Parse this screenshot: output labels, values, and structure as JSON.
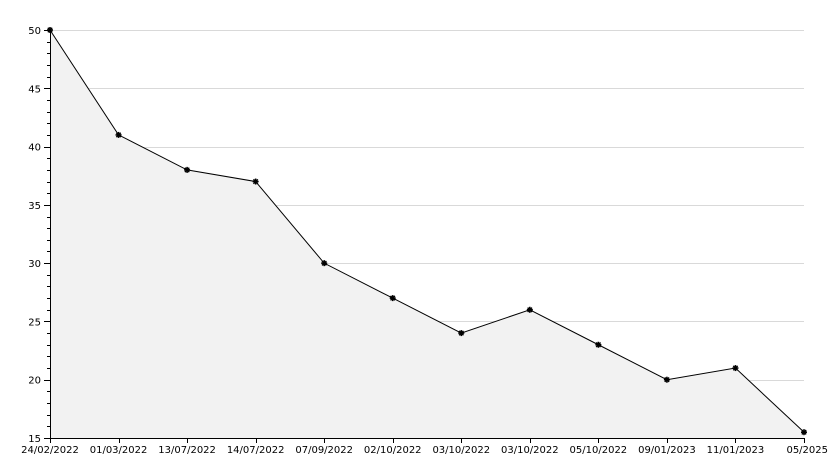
{
  "chart_data": {
    "type": "area",
    "title": "",
    "xlabel": "",
    "ylabel": "",
    "categories": [
      "24/02/2022",
      "01/03/2022",
      "13/07/2022",
      "14/07/2022",
      "07/09/2022",
      "02/10/2022",
      "03/10/2022",
      "03/10/2022",
      "05/10/2022",
      "09/01/2023",
      "11/01/2023",
      "05/2025"
    ],
    "values": [
      50,
      41,
      38,
      37,
      30,
      27,
      24,
      26,
      23,
      20,
      21,
      15.5
    ],
    "ylim": [
      15,
      50
    ],
    "yticks": [
      15,
      20,
      25,
      30,
      35,
      40,
      45,
      50
    ],
    "grid": "horizontal",
    "colors": {
      "line": "#000000",
      "fill": "#f2f2f2",
      "grid": "#d9d9d9",
      "marker": "#000000",
      "axis": "#000000"
    }
  }
}
